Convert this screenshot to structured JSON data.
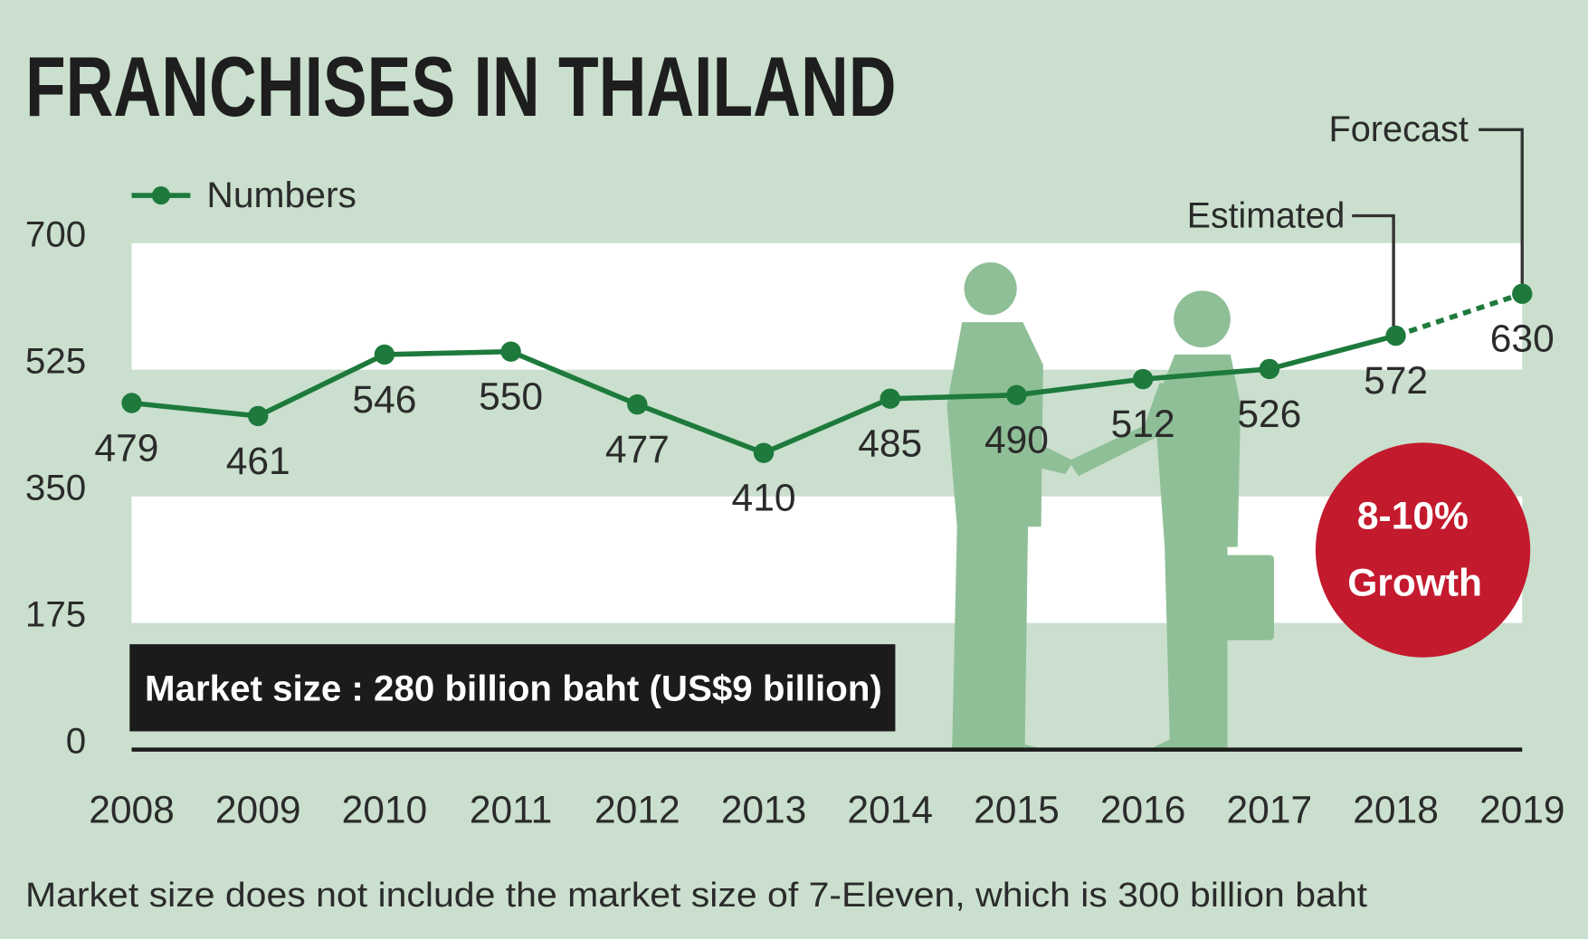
{
  "chart_data": {
    "type": "line",
    "title": "FRANCHISES IN THAILAND",
    "categories": [
      "2008",
      "2009",
      "2010",
      "2011",
      "2012",
      "2013",
      "2014",
      "2015",
      "2016",
      "2017",
      "2018",
      "2019"
    ],
    "series": [
      {
        "name": "Numbers",
        "color": "#1d7a3c",
        "values": [
          479,
          461,
          546,
          550,
          477,
          410,
          485,
          490,
          512,
          526,
          572,
          630
        ]
      }
    ],
    "ylim": [
      0,
      700
    ],
    "yticks": [
      0,
      175,
      350,
      525,
      700
    ],
    "grid": "bands",
    "legend": "top-left",
    "annotations": {
      "estimated": "Estimated",
      "forecast": "Forecast",
      "growth_badge": [
        "8-10%",
        "Growth"
      ],
      "market_size": "Market size : 280 billion baht (US$9 billion)"
    },
    "footnote": "Market size does not include the market size of 7-Eleven, which is 300 billion baht"
  }
}
